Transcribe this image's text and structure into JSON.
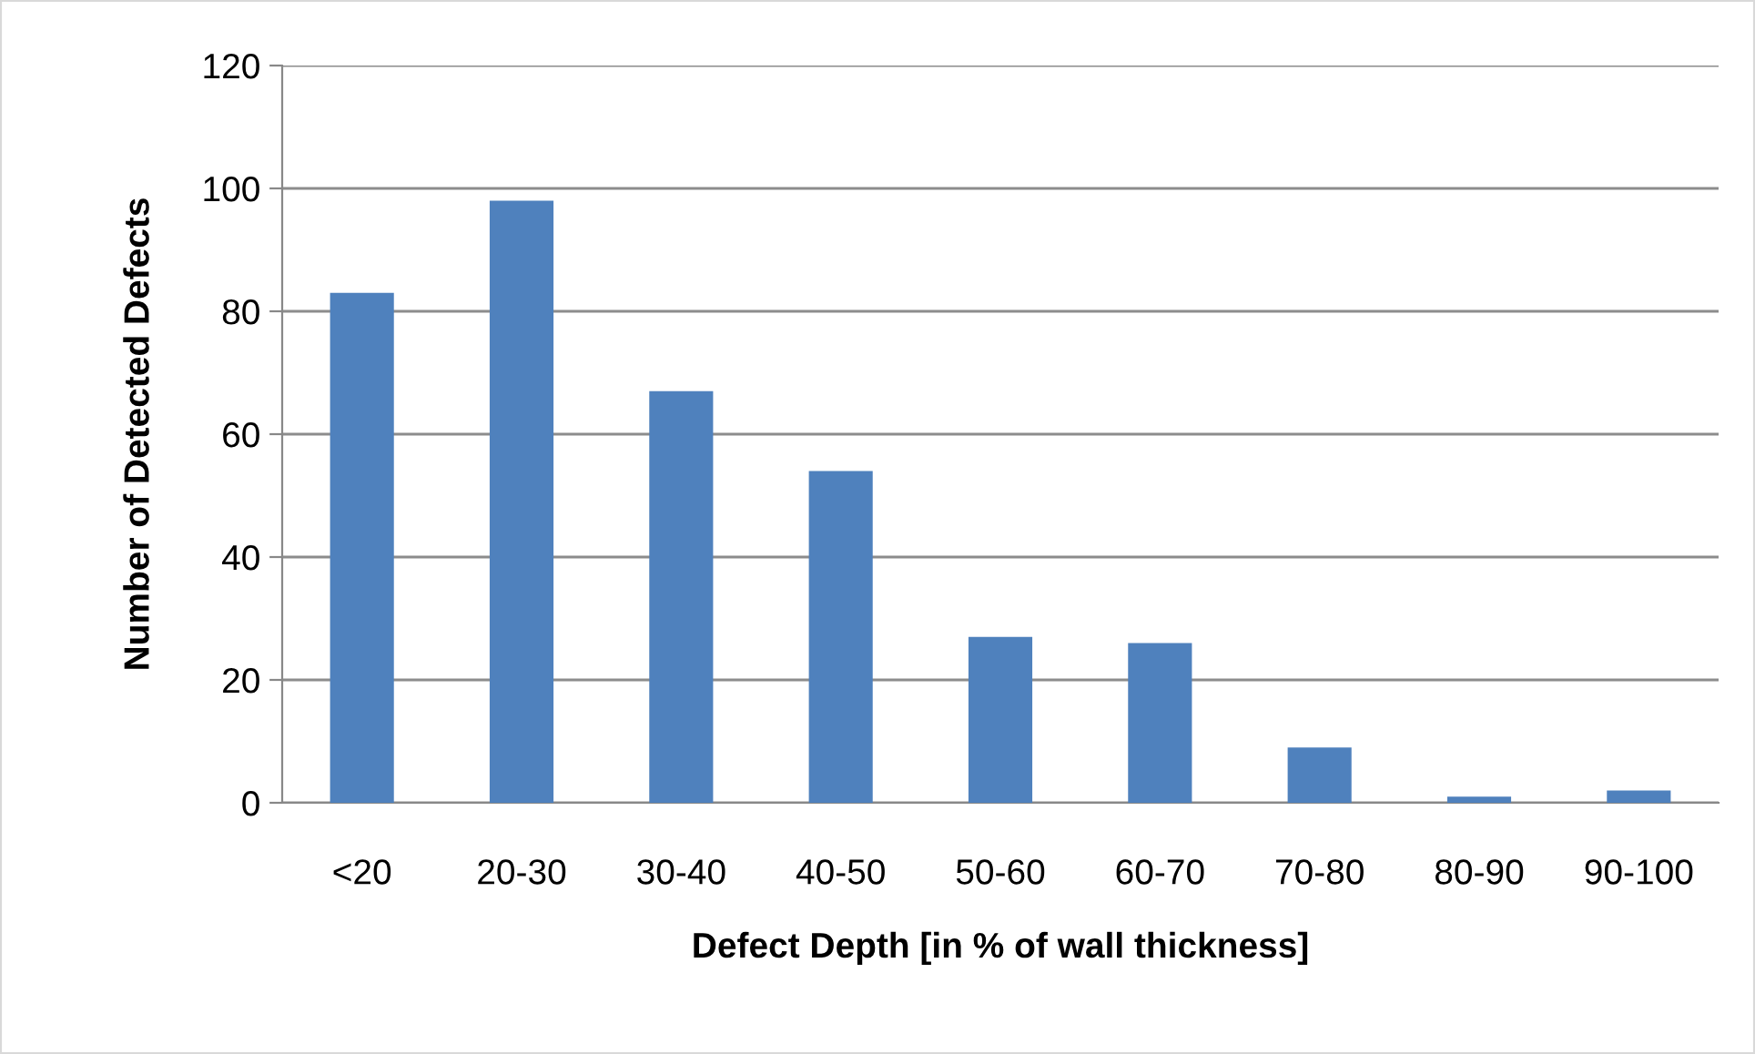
{
  "chart_data": {
    "type": "bar",
    "xlabel": "Defect Depth [in % of wall thickness]",
    "ylabel": "Number of Detected Defects",
    "categories": [
      "<20",
      "20-30",
      "30-40",
      "40-50",
      "50-60",
      "60-70",
      "70-80",
      "80-90",
      "90-100"
    ],
    "values": [
      83,
      98,
      67,
      54,
      27,
      26,
      9,
      1,
      2
    ],
    "color": "#4f81bd",
    "ylim": [
      0,
      120
    ],
    "yticks": [
      0,
      20,
      40,
      60,
      80,
      100,
      120
    ],
    "grid": "y",
    "legend": false
  }
}
